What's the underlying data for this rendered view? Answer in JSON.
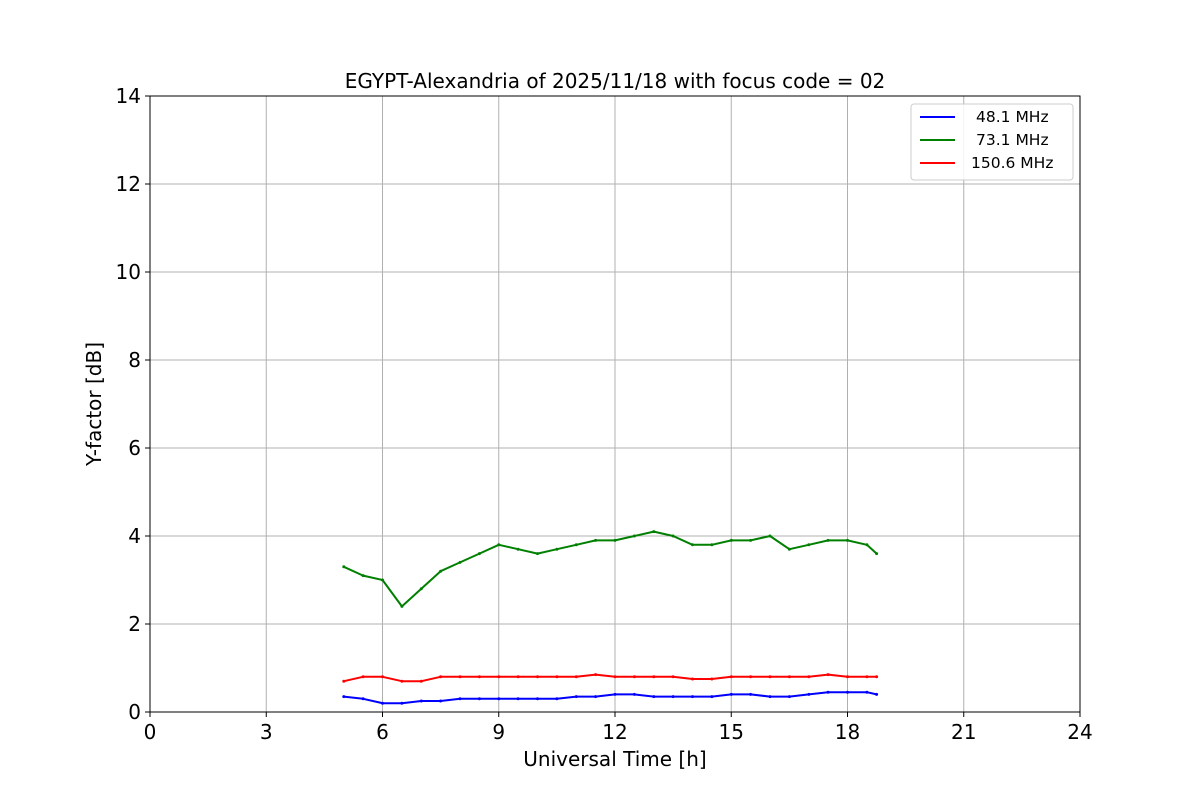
{
  "chart_data": {
    "type": "line",
    "title": "EGYPT-Alexandria of 2025/11/18 with focus code = 02",
    "xlabel": "Universal Time [h]",
    "ylabel": "Y-factor [dB]",
    "xlim": [
      0,
      24
    ],
    "ylim": [
      0,
      14
    ],
    "xticks": [
      "0",
      "3",
      "6",
      "9",
      "12",
      "15",
      "18",
      "21",
      "24"
    ],
    "yticks": [
      "0",
      "2",
      "4",
      "6",
      "8",
      "10",
      "12",
      "14"
    ],
    "grid": true,
    "legend_position": "top-right",
    "series": [
      {
        "name": "48.1 MHz",
        "color": "#0000ff",
        "x": [
          5.0,
          5.5,
          6.0,
          6.5,
          7.0,
          7.5,
          8.0,
          8.5,
          9.0,
          9.5,
          10.0,
          10.5,
          11.0,
          11.5,
          12.0,
          12.5,
          13.0,
          13.5,
          14.0,
          14.5,
          15.0,
          15.5,
          16.0,
          16.5,
          17.0,
          17.5,
          18.0,
          18.5,
          18.75
        ],
        "values": [
          0.35,
          0.3,
          0.2,
          0.2,
          0.25,
          0.25,
          0.3,
          0.3,
          0.3,
          0.3,
          0.3,
          0.3,
          0.35,
          0.35,
          0.4,
          0.4,
          0.35,
          0.35,
          0.35,
          0.35,
          0.4,
          0.4,
          0.35,
          0.35,
          0.4,
          0.45,
          0.45,
          0.45,
          0.4
        ]
      },
      {
        "name": "73.1 MHz",
        "color": "#008000",
        "x": [
          5.0,
          5.5,
          6.0,
          6.5,
          7.0,
          7.5,
          8.0,
          8.5,
          9.0,
          9.5,
          10.0,
          10.5,
          11.0,
          11.5,
          12.0,
          12.5,
          13.0,
          13.5,
          14.0,
          14.5,
          15.0,
          15.5,
          16.0,
          16.5,
          17.0,
          17.5,
          18.0,
          18.5,
          18.75
        ],
        "values": [
          3.3,
          3.1,
          3.0,
          2.4,
          2.8,
          3.2,
          3.4,
          3.6,
          3.8,
          3.7,
          3.6,
          3.7,
          3.8,
          3.9,
          3.9,
          4.0,
          4.1,
          4.0,
          3.8,
          3.8,
          3.9,
          3.9,
          4.0,
          3.7,
          3.8,
          3.9,
          3.9,
          3.8,
          3.6
        ]
      },
      {
        "name": "150.6 MHz",
        "color": "#ff0000",
        "x": [
          5.0,
          5.5,
          6.0,
          6.5,
          7.0,
          7.5,
          8.0,
          8.5,
          9.0,
          9.5,
          10.0,
          10.5,
          11.0,
          11.5,
          12.0,
          12.5,
          13.0,
          13.5,
          14.0,
          14.5,
          15.0,
          15.5,
          16.0,
          16.5,
          17.0,
          17.5,
          18.0,
          18.5,
          18.75
        ],
        "values": [
          0.7,
          0.8,
          0.8,
          0.7,
          0.7,
          0.8,
          0.8,
          0.8,
          0.8,
          0.8,
          0.8,
          0.8,
          0.8,
          0.85,
          0.8,
          0.8,
          0.8,
          0.8,
          0.75,
          0.75,
          0.8,
          0.8,
          0.8,
          0.8,
          0.8,
          0.85,
          0.8,
          0.8,
          0.8
        ]
      }
    ]
  }
}
